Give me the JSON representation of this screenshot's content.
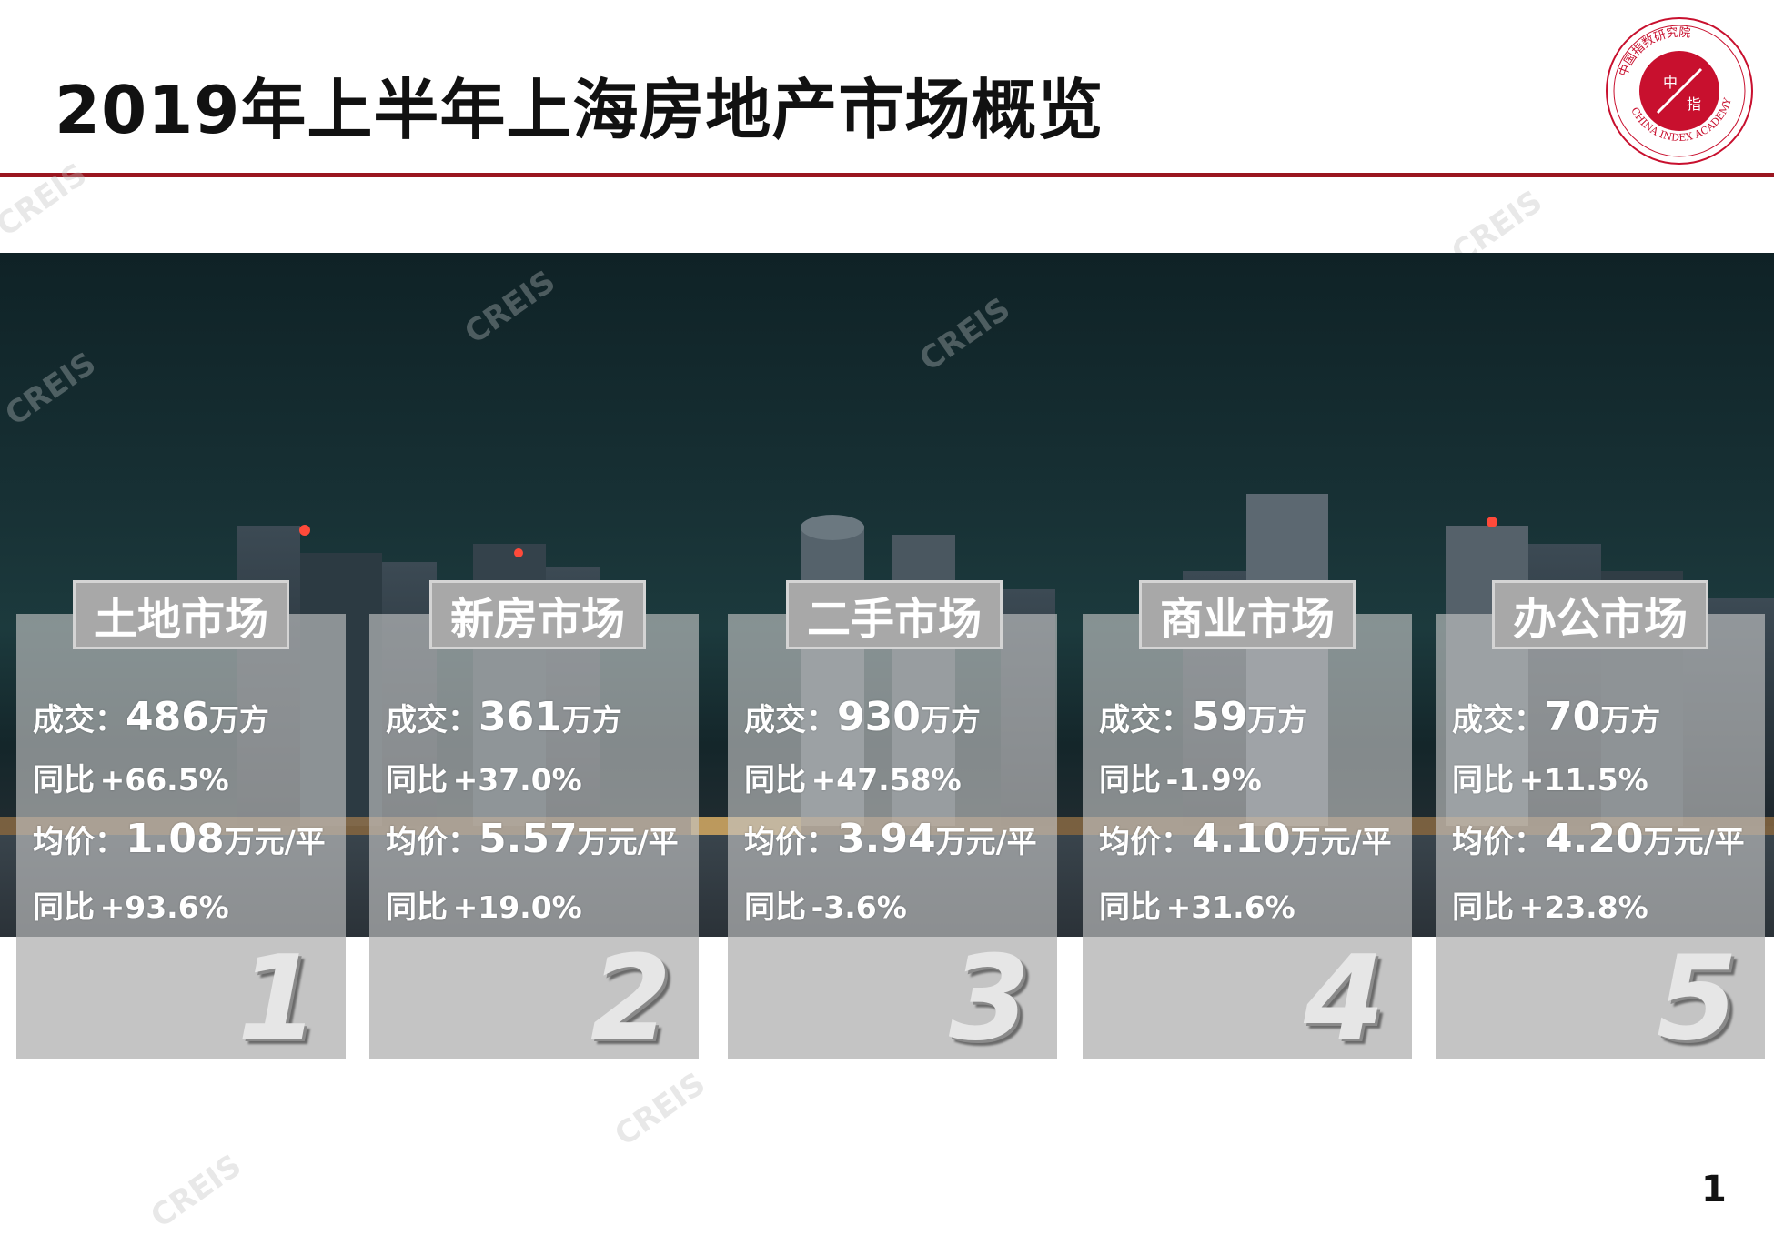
{
  "title": "2019年上半年上海房地产市场概览",
  "page_number": "1",
  "logo": {
    "name": "中指研究院 China Index Academy seal",
    "text_top": "中国指数研究院",
    "text_bottom": "CHINA INDEX ACADEMY",
    "center_mark": "中 ╱ 指",
    "color": "#c8102e"
  },
  "watermark_text": "CREIS",
  "colors": {
    "rule": "#9a1620",
    "card": "#c8c8c8",
    "tab": "#a8a8a8"
  },
  "markets": [
    {
      "name": "土地市场",
      "deal_label": "成交：",
      "deal_value": "486",
      "deal_unit": "万方",
      "yoy1_label": "同比",
      "yoy1": "+66.5%",
      "price_label": "均价：",
      "price_value": "1.08",
      "price_unit": "万元/平",
      "yoy2_label": "同比",
      "yoy2": "+93.6%",
      "number": "1"
    },
    {
      "name": "新房市场",
      "deal_label": "成交：",
      "deal_value": "361",
      "deal_unit": "万方",
      "yoy1_label": "同比",
      "yoy1": "+37.0%",
      "price_label": "均价：",
      "price_value": "5.57",
      "price_unit": "万元/平",
      "yoy2_label": "同比",
      "yoy2": "+19.0%",
      "number": "2"
    },
    {
      "name": "二手市场",
      "deal_label": "成交：",
      "deal_value": "930",
      "deal_unit": "万方",
      "yoy1_label": "同比",
      "yoy1": "+47.58%",
      "price_label": "均价：",
      "price_value": "3.94",
      "price_unit": "万元/平",
      "yoy2_label": "同比",
      "yoy2": "-3.6%",
      "number": "3"
    },
    {
      "name": "商业市场",
      "deal_label": "成交：",
      "deal_value": "59",
      "deal_unit": "万方",
      "yoy1_label": "同比",
      "yoy1": "-1.9%",
      "price_label": "均价：",
      "price_value": "4.10",
      "price_unit": "万元/平",
      "yoy2_label": "同比",
      "yoy2": "+31.6%",
      "number": "4"
    },
    {
      "name": "办公市场",
      "deal_label": "成交：",
      "deal_value": "70",
      "deal_unit": "万方",
      "yoy1_label": "同比",
      "yoy1": "+11.5%",
      "price_label": "均价：",
      "price_value": "4.20",
      "price_unit": "万元/平",
      "yoy2_label": "同比",
      "yoy2": "+23.8%",
      "number": "5"
    }
  ]
}
